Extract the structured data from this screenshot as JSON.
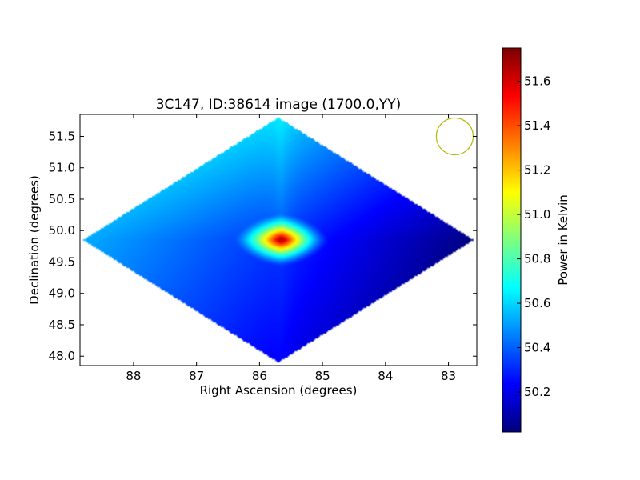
{
  "chart_data": {
    "type": "heatmap",
    "title": "3C147, ID:38614 image (1700.0,YY)",
    "xlabel": "Right Ascension (degrees)",
    "ylabel": "Declination (degrees)",
    "x_ticks": [
      "88",
      "87",
      "86",
      "85",
      "84",
      "83"
    ],
    "y_ticks": [
      "48.0",
      "48.5",
      "49.0",
      "49.5",
      "50.0",
      "50.5",
      "51.0",
      "51.5"
    ],
    "xlim": [
      88.85,
      82.55
    ],
    "ylim": [
      47.85,
      51.85
    ],
    "x_inverted": true,
    "colormap": "jet",
    "colorbar": {
      "label": "Power in Kelvin",
      "range": [
        50.02,
        51.75
      ],
      "ticks": [
        "50.2",
        "50.4",
        "50.6",
        "50.8",
        "51.0",
        "51.2",
        "51.4",
        "51.6"
      ]
    },
    "map": {
      "center_ra": 85.7,
      "center_dec": 49.85,
      "half_width_ra": 3.1,
      "half_height_dec": 1.95,
      "peak_value": 51.75,
      "peak_ra": 85.65,
      "peak_dec": 49.85,
      "background_top": 50.6,
      "background_left": 50.55,
      "background_right": 50.05,
      "background_bottom": 50.15
    },
    "beam_marker": {
      "ra": 82.9,
      "dec": 51.5,
      "color": "#b5b500"
    }
  }
}
